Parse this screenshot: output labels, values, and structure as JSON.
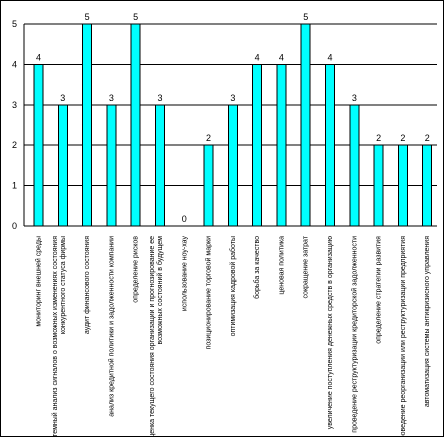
{
  "chart_data": {
    "type": "bar",
    "title": "",
    "xlabel": "",
    "ylabel": "",
    "ylim": [
      0,
      5
    ],
    "yticks": [
      0,
      1,
      2,
      3,
      4,
      5
    ],
    "grid": true,
    "legend": "none",
    "colors": {
      "bar_fill": "#00FFFF",
      "bar_stroke": "#000000",
      "grid": "#000000"
    },
    "categories": [
      "мониторинг внешней среды",
      "системный анализ сигналов о возможных изменениях состояния конкурентного статуса фирмы",
      "аудит финансового состояния",
      "анализ кредитной политики и задолженности компании",
      "определение рисков",
      "оценка текущего состояния организации и прогнозирование ее возможных состояний в будущем",
      "использование ноу-хау",
      "позиционирование торговой марки",
      "оптимизация кадровой работы",
      "борьба за качество",
      "ценовая политика",
      "сокращение затрат",
      "увеличение поступления денежных средств в организацию",
      "проведение реструктуризации кредиторской задолженности",
      "определение стратегии развития",
      "проведение реорганизации или реструктуризации предприятия",
      "автоматизация системы антикризисного управления"
    ],
    "values": [
      4,
      3,
      5,
      3,
      5,
      3,
      0,
      2,
      3,
      4,
      4,
      5,
      4,
      3,
      2,
      2,
      2
    ]
  }
}
